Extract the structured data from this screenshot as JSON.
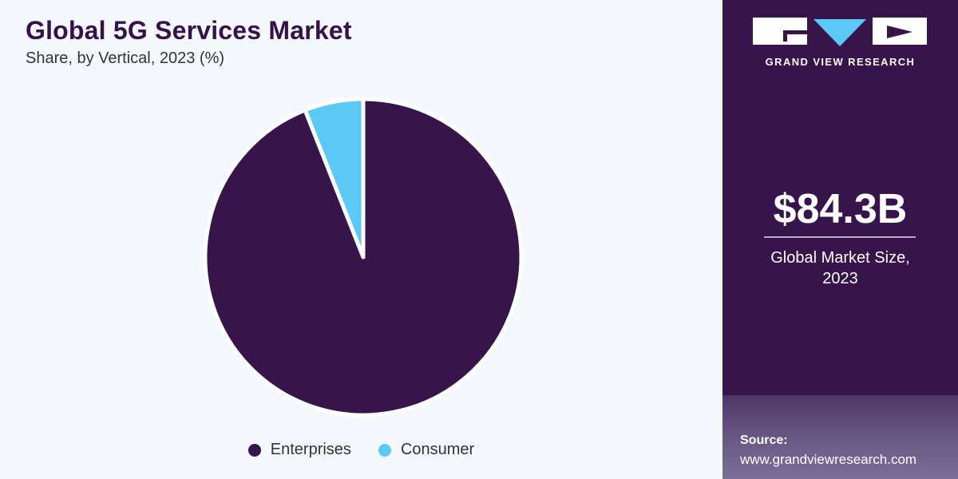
{
  "chart_data": {
    "type": "pie",
    "title": "Global 5G Services Market",
    "subtitle": "Share, by Vertical, 2023 (%)",
    "categories": [
      "Enterprises",
      "Consumer"
    ],
    "values": [
      94,
      6
    ],
    "colors": [
      "#371449",
      "#5bc8f5"
    ],
    "legend_position": "bottom"
  },
  "sidebar": {
    "brand": "GRAND VIEW RESEARCH",
    "stat_value": "$84.3B",
    "stat_label_line1": "Global Market Size,",
    "stat_label_line2": "2023",
    "source_label": "Source:",
    "source_url": "www.grandviewresearch.com"
  },
  "colors": {
    "accent": "#371449",
    "consumer": "#5bc8f5",
    "background": "#f4f7fb"
  }
}
